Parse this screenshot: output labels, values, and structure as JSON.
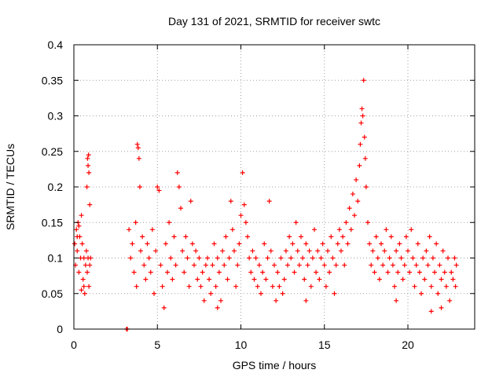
{
  "chart_data": {
    "type": "scatter",
    "title": "Day 131 of 2021, SRMTID for receiver swtc",
    "xlabel": "GPS time / hours",
    "ylabel": "SRMTID / TECUs",
    "xlim": [
      0,
      24
    ],
    "ylim": [
      0,
      0.4
    ],
    "xticks": [
      0,
      5,
      10,
      15,
      20
    ],
    "xtick_labels": [
      "0",
      "5",
      "10",
      "15",
      "20"
    ],
    "yticks": [
      0,
      0.05,
      0.1,
      0.15,
      0.2,
      0.25,
      0.3,
      0.35,
      0.4
    ],
    "ytick_labels": [
      "0",
      "0.05",
      "0.1",
      "0.15",
      "0.2",
      "0.25",
      "0.3",
      "0.35",
      "0.4"
    ],
    "grid": true,
    "marker": "+",
    "series": [
      {
        "name": "SRMTID",
        "color": "#ff0000",
        "points": [
          [
            0.05,
            0.12
          ],
          [
            0.1,
            0.09
          ],
          [
            0.15,
            0.14
          ],
          [
            0.2,
            0.11
          ],
          [
            0.25,
            0.15
          ],
          [
            0.3,
            0.08
          ],
          [
            0.35,
            0.13
          ],
          [
            0.4,
            0.1
          ],
          [
            0.45,
            0.16
          ],
          [
            0.5,
            0.12
          ],
          [
            0.55,
            0.07
          ],
          [
            0.6,
            0.1
          ],
          [
            0.65,
            0.05
          ],
          [
            0.7,
            0.09
          ],
          [
            0.75,
            0.11
          ],
          [
            0.8,
            0.08
          ],
          [
            0.85,
            0.1
          ],
          [
            0.9,
            0.06
          ],
          [
            0.95,
            0.09
          ],
          [
            1.0,
            0.1
          ],
          [
            0.82,
            0.24
          ],
          [
            0.85,
            0.23
          ],
          [
            0.88,
            0.245
          ],
          [
            0.9,
            0.22
          ],
          [
            0.78,
            0.2
          ],
          [
            0.95,
            0.175
          ],
          [
            0.6,
            0.06
          ],
          [
            0.45,
            0.055
          ],
          [
            0.3,
            0.145
          ],
          [
            0.2,
            0.13
          ],
          [
            3.15,
            0.0
          ],
          [
            3.2,
            0.0
          ],
          [
            3.3,
            0.14
          ],
          [
            3.4,
            0.1
          ],
          [
            3.5,
            0.12
          ],
          [
            3.6,
            0.08
          ],
          [
            3.7,
            0.15
          ],
          [
            3.75,
            0.06
          ],
          [
            3.8,
            0.26
          ],
          [
            3.85,
            0.255
          ],
          [
            3.9,
            0.24
          ],
          [
            3.95,
            0.2
          ],
          [
            4.0,
            0.11
          ],
          [
            4.1,
            0.13
          ],
          [
            4.2,
            0.09
          ],
          [
            4.3,
            0.07
          ],
          [
            4.4,
            0.12
          ],
          [
            4.5,
            0.1
          ],
          [
            4.6,
            0.08
          ],
          [
            4.7,
            0.14
          ],
          [
            4.8,
            0.05
          ],
          [
            4.9,
            0.11
          ],
          [
            5.0,
            0.2
          ],
          [
            5.1,
            0.195
          ],
          [
            5.2,
            0.09
          ],
          [
            5.3,
            0.06
          ],
          [
            5.4,
            0.03
          ],
          [
            5.5,
            0.12
          ],
          [
            5.6,
            0.08
          ],
          [
            5.7,
            0.15
          ],
          [
            5.8,
            0.1
          ],
          [
            5.9,
            0.07
          ],
          [
            6.0,
            0.13
          ],
          [
            6.1,
            0.09
          ],
          [
            6.2,
            0.22
          ],
          [
            6.3,
            0.2
          ],
          [
            6.4,
            0.17
          ],
          [
            6.5,
            0.11
          ],
          [
            6.6,
            0.08
          ],
          [
            6.7,
            0.13
          ],
          [
            6.8,
            0.1
          ],
          [
            6.9,
            0.06
          ],
          [
            7.0,
            0.18
          ],
          [
            7.1,
            0.12
          ],
          [
            7.2,
            0.09
          ],
          [
            7.3,
            0.11
          ],
          [
            7.4,
            0.07
          ],
          [
            7.5,
            0.1
          ],
          [
            7.6,
            0.06
          ],
          [
            7.7,
            0.08
          ],
          [
            7.8,
            0.04
          ],
          [
            7.9,
            0.09
          ],
          [
            8.0,
            0.1
          ],
          [
            8.1,
            0.07
          ],
          [
            8.2,
            0.05
          ],
          [
            8.3,
            0.09
          ],
          [
            8.4,
            0.12
          ],
          [
            8.5,
            0.06
          ],
          [
            8.6,
            0.1
          ],
          [
            8.7,
            0.08
          ],
          [
            8.8,
            0.04
          ],
          [
            8.9,
            0.11
          ],
          [
            9.0,
            0.09
          ],
          [
            9.1,
            0.13
          ],
          [
            9.2,
            0.07
          ],
          [
            9.3,
            0.1
          ],
          [
            9.4,
            0.18
          ],
          [
            9.5,
            0.14
          ],
          [
            9.6,
            0.11
          ],
          [
            9.7,
            0.06
          ],
          [
            9.8,
            0.09
          ],
          [
            9.9,
            0.12
          ],
          [
            10.0,
            0.16
          ],
          [
            10.1,
            0.22
          ],
          [
            10.2,
            0.175
          ],
          [
            10.3,
            0.15
          ],
          [
            10.4,
            0.13
          ],
          [
            10.5,
            0.1
          ],
          [
            10.6,
            0.08
          ],
          [
            10.7,
            0.11
          ],
          [
            10.8,
            0.07
          ],
          [
            10.9,
            0.1
          ],
          [
            11.0,
            0.06
          ],
          [
            11.1,
            0.09
          ],
          [
            11.2,
            0.05
          ],
          [
            11.3,
            0.08
          ],
          [
            11.4,
            0.12
          ],
          [
            11.5,
            0.07
          ],
          [
            11.6,
            0.1
          ],
          [
            11.7,
            0.18
          ],
          [
            11.8,
            0.11
          ],
          [
            11.9,
            0.06
          ],
          [
            12.0,
            0.09
          ],
          [
            12.1,
            0.04
          ],
          [
            12.2,
            0.08
          ],
          [
            12.3,
            0.06
          ],
          [
            12.4,
            0.1
          ],
          [
            12.5,
            0.05
          ],
          [
            12.6,
            0.07
          ],
          [
            12.7,
            0.11
          ],
          [
            12.8,
            0.09
          ],
          [
            12.9,
            0.13
          ],
          [
            13.0,
            0.1
          ],
          [
            13.1,
            0.12
          ],
          [
            13.2,
            0.08
          ],
          [
            13.3,
            0.15
          ],
          [
            13.4,
            0.11
          ],
          [
            13.5,
            0.09
          ],
          [
            13.6,
            0.13
          ],
          [
            13.7,
            0.1
          ],
          [
            13.8,
            0.07
          ],
          [
            13.9,
            0.12
          ],
          [
            14.0,
            0.09
          ],
          [
            14.1,
            0.11
          ],
          [
            14.2,
            0.06
          ],
          [
            14.3,
            0.1
          ],
          [
            14.4,
            0.14
          ],
          [
            14.5,
            0.08
          ],
          [
            14.6,
            0.11
          ],
          [
            14.7,
            0.07
          ],
          [
            14.8,
            0.1
          ],
          [
            14.9,
            0.12
          ],
          [
            15.0,
            0.09
          ],
          [
            15.1,
            0.06
          ],
          [
            15.2,
            0.11
          ],
          [
            15.3,
            0.08
          ],
          [
            15.4,
            0.13
          ],
          [
            15.5,
            0.1
          ],
          [
            15.6,
            0.05
          ],
          [
            15.7,
            0.09
          ],
          [
            15.8,
            0.12
          ],
          [
            15.9,
            0.14
          ],
          [
            16.0,
            0.11
          ],
          [
            16.1,
            0.13
          ],
          [
            16.2,
            0.09
          ],
          [
            16.3,
            0.15
          ],
          [
            16.4,
            0.12
          ],
          [
            16.5,
            0.17
          ],
          [
            16.6,
            0.14
          ],
          [
            16.7,
            0.19
          ],
          [
            16.8,
            0.16
          ],
          [
            16.9,
            0.21
          ],
          [
            17.0,
            0.18
          ],
          [
            17.1,
            0.23
          ],
          [
            17.15,
            0.26
          ],
          [
            17.2,
            0.29
          ],
          [
            17.25,
            0.31
          ],
          [
            17.3,
            0.3
          ],
          [
            17.35,
            0.35
          ],
          [
            17.4,
            0.27
          ],
          [
            17.45,
            0.24
          ],
          [
            17.5,
            0.2
          ],
          [
            17.6,
            0.15
          ],
          [
            17.7,
            0.12
          ],
          [
            17.8,
            0.09
          ],
          [
            17.9,
            0.11
          ],
          [
            18.0,
            0.08
          ],
          [
            18.1,
            0.13
          ],
          [
            18.2,
            0.1
          ],
          [
            18.3,
            0.07
          ],
          [
            18.4,
            0.12
          ],
          [
            18.5,
            0.09
          ],
          [
            18.6,
            0.11
          ],
          [
            18.7,
            0.14
          ],
          [
            18.8,
            0.08
          ],
          [
            18.9,
            0.1
          ],
          [
            19.0,
            0.13
          ],
          [
            19.1,
            0.09
          ],
          [
            19.2,
            0.06
          ],
          [
            19.3,
            0.11
          ],
          [
            19.4,
            0.08
          ],
          [
            19.5,
            0.12
          ],
          [
            19.6,
            0.1
          ],
          [
            19.7,
            0.07
          ],
          [
            19.8,
            0.09
          ],
          [
            19.9,
            0.13
          ],
          [
            20.0,
            0.11
          ],
          [
            20.1,
            0.08
          ],
          [
            20.2,
            0.14
          ],
          [
            20.3,
            0.1
          ],
          [
            20.4,
            0.06
          ],
          [
            20.5,
            0.09
          ],
          [
            20.6,
            0.12
          ],
          [
            20.7,
            0.08
          ],
          [
            20.8,
            0.05
          ],
          [
            20.9,
            0.1
          ],
          [
            21.0,
            0.07
          ],
          [
            21.1,
            0.11
          ],
          [
            21.2,
            0.09
          ],
          [
            21.3,
            0.13
          ],
          [
            21.4,
            0.06
          ],
          [
            21.5,
            0.1
          ],
          [
            21.6,
            0.08
          ],
          [
            21.7,
            0.12
          ],
          [
            21.8,
            0.05
          ],
          [
            21.9,
            0.09
          ],
          [
            22.0,
            0.07
          ],
          [
            22.1,
            0.11
          ],
          [
            22.2,
            0.08
          ],
          [
            22.3,
            0.06
          ],
          [
            22.4,
            0.1
          ],
          [
            22.5,
            0.04
          ],
          [
            22.6,
            0.08
          ],
          [
            22.7,
            0.07
          ],
          [
            22.8,
            0.1
          ],
          [
            22.85,
            0.06
          ],
          [
            22.9,
            0.09
          ],
          [
            22.0,
            0.03
          ],
          [
            21.4,
            0.025
          ],
          [
            19.3,
            0.04
          ],
          [
            13.9,
            0.04
          ],
          [
            8.6,
            0.03
          ]
        ]
      }
    ]
  }
}
